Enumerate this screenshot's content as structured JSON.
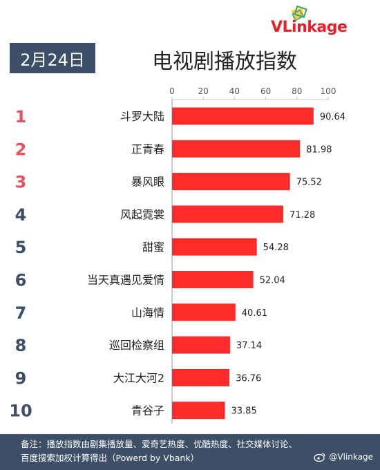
{
  "brand": {
    "name": "VLinkage"
  },
  "header": {
    "date": "2月24日",
    "title": "电视剧播放指数"
  },
  "chart_data": {
    "type": "bar",
    "orientation": "horizontal",
    "xlim": [
      0,
      100
    ],
    "ticks": [
      0,
      20,
      40,
      60,
      80,
      100
    ],
    "bar_color": "#ff2a2a",
    "items": [
      {
        "rank": "1",
        "name": "斗罗大陆",
        "value": 90.64,
        "label": "90.64"
      },
      {
        "rank": "2",
        "name": "正青春",
        "value": 81.98,
        "label": "81.98"
      },
      {
        "rank": "3",
        "name": "暴风眼",
        "value": 75.52,
        "label": "75.52"
      },
      {
        "rank": "4",
        "name": "风起霓裳",
        "value": 71.28,
        "label": "71.28"
      },
      {
        "rank": "5",
        "name": "甜蜜",
        "value": 54.28,
        "label": "54.28"
      },
      {
        "rank": "6",
        "name": "当天真遇见爱情",
        "value": 52.04,
        "label": "52.04"
      },
      {
        "rank": "7",
        "name": "山海情",
        "value": 40.61,
        "label": "40.61"
      },
      {
        "rank": "8",
        "name": "巡回检察组",
        "value": 37.14,
        "label": "37.14"
      },
      {
        "rank": "9",
        "name": "大江大河2",
        "value": 36.76,
        "label": "36.76"
      },
      {
        "rank": "10",
        "name": "青谷子",
        "value": 33.85,
        "label": "33.85"
      }
    ],
    "rank_colors": {
      "top3": "#e8505b",
      "rest": "#3d4f66"
    }
  },
  "footer": {
    "line1": "备注：播放指数由剧集播放量、爱奇艺热度、优酷热度、社交媒体讨论、",
    "line2": "百度搜索加权计算得出（Powerd by Vbank）",
    "weibo": "@Vlinkage"
  }
}
